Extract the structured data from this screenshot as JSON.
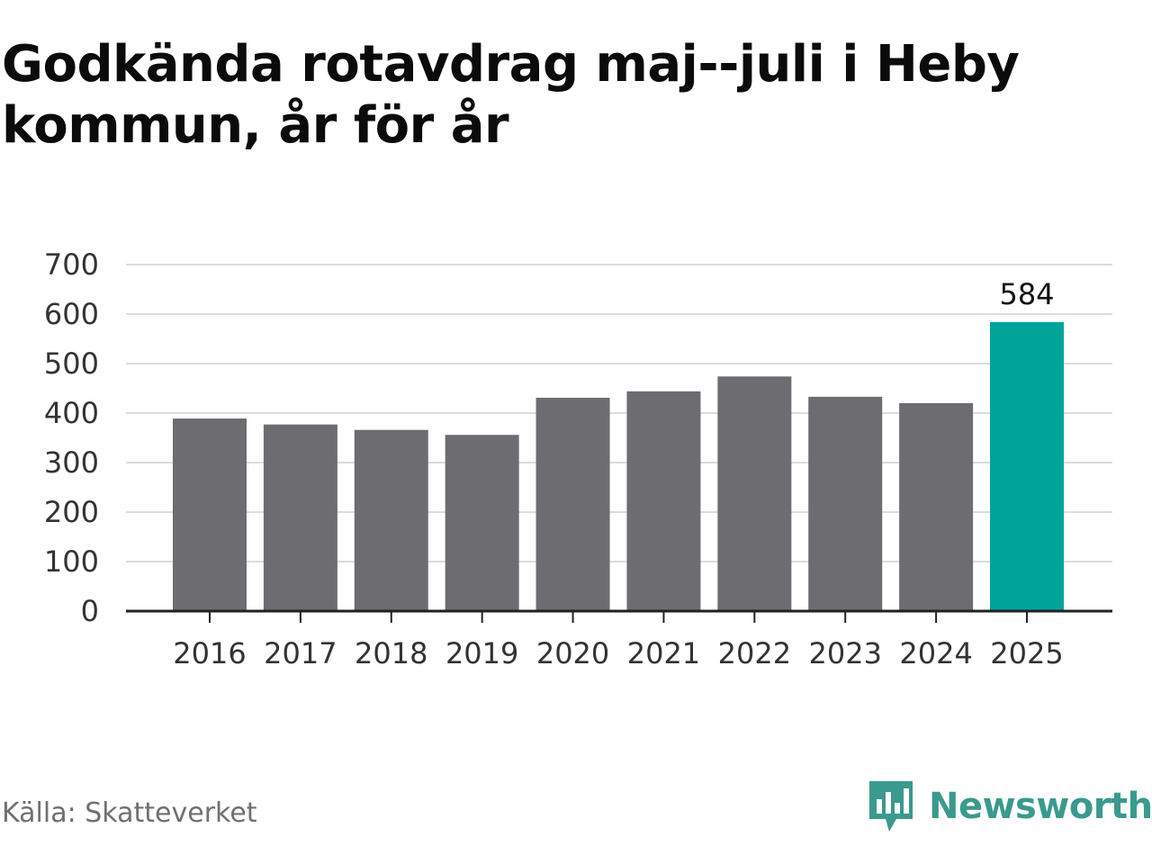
{
  "title": "Godkända rotavdrag maj--juli i Heby kommun, år för år",
  "source": "Källa: Skatteverket",
  "brand": {
    "name": "Newsworthy",
    "icon": "newsworthy-logo-icon",
    "color": "#3a9a8d"
  },
  "colors": {
    "bar": "#6d6c71",
    "highlight": "#00a39a",
    "grid": "#dcdcdc",
    "axis": "#222222",
    "text": "#333333"
  },
  "chart_data": {
    "type": "bar",
    "categories": [
      "2016",
      "2017",
      "2018",
      "2019",
      "2020",
      "2021",
      "2022",
      "2023",
      "2024",
      "2025"
    ],
    "values": [
      389,
      377,
      366,
      356,
      431,
      444,
      474,
      433,
      420,
      584
    ],
    "yticks": [
      "0",
      "100",
      "200",
      "300",
      "400",
      "500",
      "600",
      "700"
    ],
    "ylim": [
      0,
      700
    ],
    "highlight_index": 9,
    "highlight_label": "584",
    "title": "Godkända rotavdrag maj--juli i Heby kommun, år för år",
    "xlabel": "",
    "ylabel": "",
    "grid": true,
    "legend": "none"
  }
}
